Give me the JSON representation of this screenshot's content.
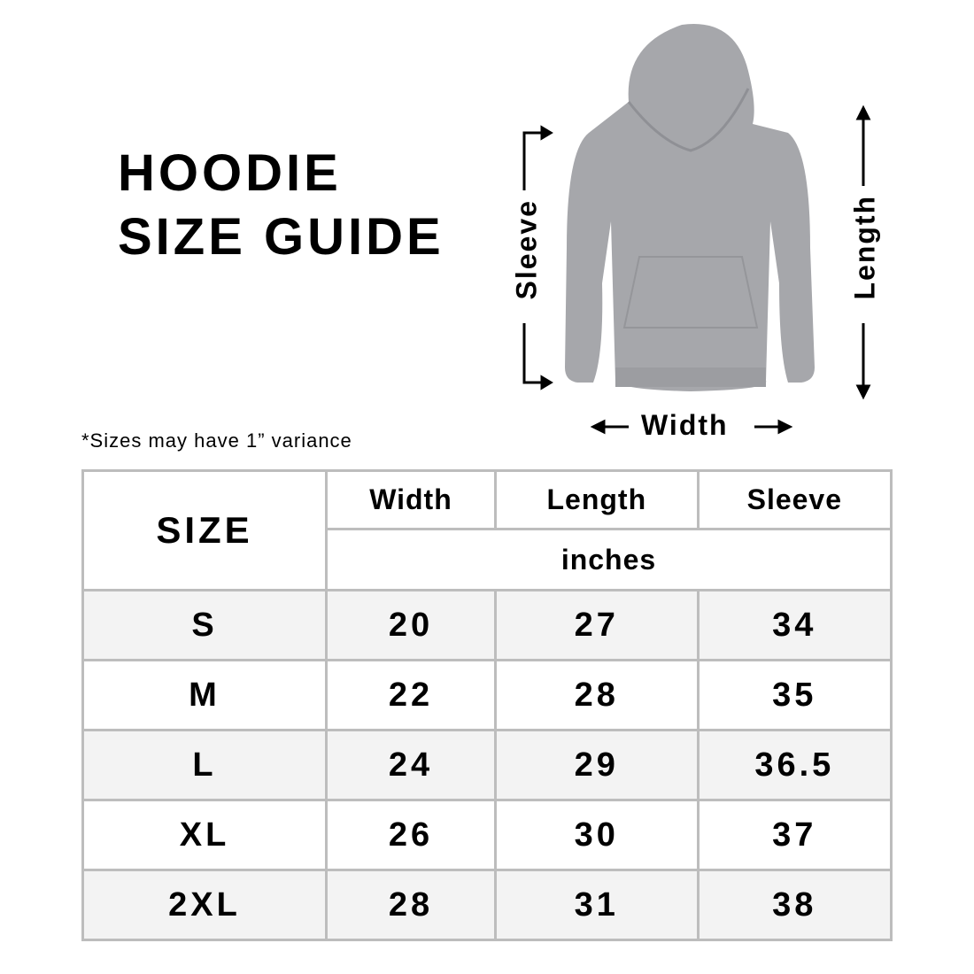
{
  "title": {
    "line1": "HOODIE",
    "line2": "SIZE GUIDE"
  },
  "note": "*Sizes may have 1” variance",
  "diagram": {
    "sleeve": "Sleeve",
    "length": "Length",
    "width": "Width",
    "garment_color": "#a6a7ab"
  },
  "table": {
    "size_header": "SIZE",
    "columns": [
      "Width",
      "Length",
      "Sleeve"
    ],
    "unit": "inches",
    "rows": [
      {
        "size": "S",
        "width": "20",
        "length": "27",
        "sleeve": "34"
      },
      {
        "size": "M",
        "width": "22",
        "length": "28",
        "sleeve": "35"
      },
      {
        "size": "L",
        "width": "24",
        "length": "29",
        "sleeve": "36.5"
      },
      {
        "size": "XL",
        "width": "26",
        "length": "30",
        "sleeve": "37"
      },
      {
        "size": "2XL",
        "width": "28",
        "length": "31",
        "sleeve": "38"
      }
    ]
  }
}
